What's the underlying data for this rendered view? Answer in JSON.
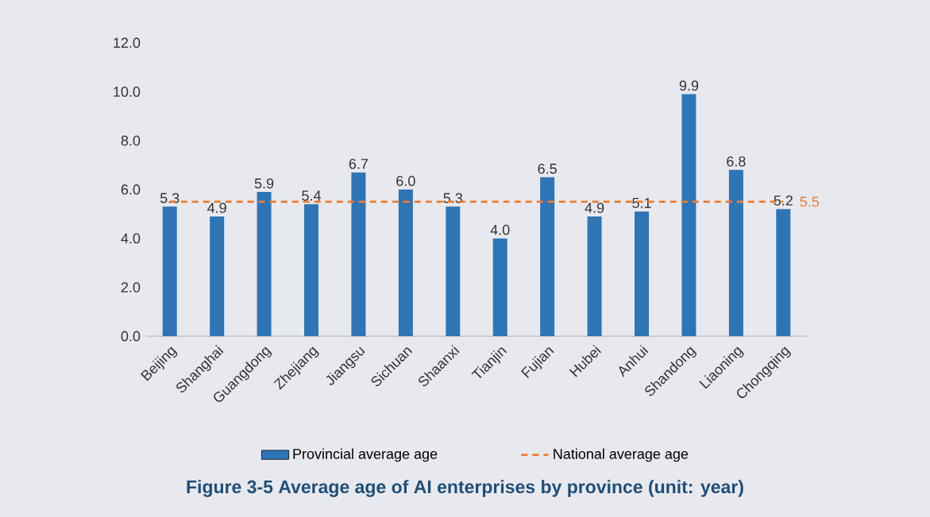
{
  "chart_data": {
    "type": "bar",
    "title": "Figure 3-5  Average age of AI enterprises by province (unit: year)",
    "categories": [
      "Beijing",
      "Shanghai",
      "Guangdong",
      "Zhejiang",
      "Jiangsu",
      "Sichuan",
      "Shaanxi",
      "Tianjin",
      "Fujian",
      "Hubei",
      "Anhui",
      "Shandong",
      "Liaoning",
      "Chongqing"
    ],
    "series": [
      {
        "name": "Provincial average age",
        "color": "#2e75b6",
        "values": [
          5.3,
          4.9,
          5.9,
          5.4,
          6.7,
          6.0,
          5.3,
          4.0,
          6.5,
          4.9,
          5.1,
          9.9,
          6.8,
          5.2
        ],
        "value_labels": [
          "5.3",
          "4.9",
          "5.9",
          "5.4",
          "6.7",
          "6.0",
          "5.3",
          "4.0",
          "6.5",
          "4.9",
          "5.1",
          "9.9",
          "6.8",
          "5.2"
        ]
      },
      {
        "name": "National average age",
        "type": "line",
        "color": "#ed7d31",
        "line_style": "dashed",
        "values": [
          5.5,
          5.5,
          5.5,
          5.5,
          5.5,
          5.5,
          5.5,
          5.5,
          5.5,
          5.5,
          5.5,
          5.5,
          5.5,
          5.5
        ]
      }
    ],
    "annotations": [
      {
        "text": "5.5",
        "x": "Chongqing",
        "y": 5.5
      }
    ],
    "ylim": [
      0,
      12
    ],
    "yticks": [
      {
        "value": 0,
        "label": "0.0"
      },
      {
        "value": 2,
        "label": "2.0"
      },
      {
        "value": 4,
        "label": "4.0"
      },
      {
        "value": 6,
        "label": "6.0"
      },
      {
        "value": 8,
        "label": "8.0"
      },
      {
        "value": 10,
        "label": "10.0"
      },
      {
        "value": 12,
        "label": "12.0"
      }
    ],
    "grid": false,
    "legend": "bottom"
  }
}
